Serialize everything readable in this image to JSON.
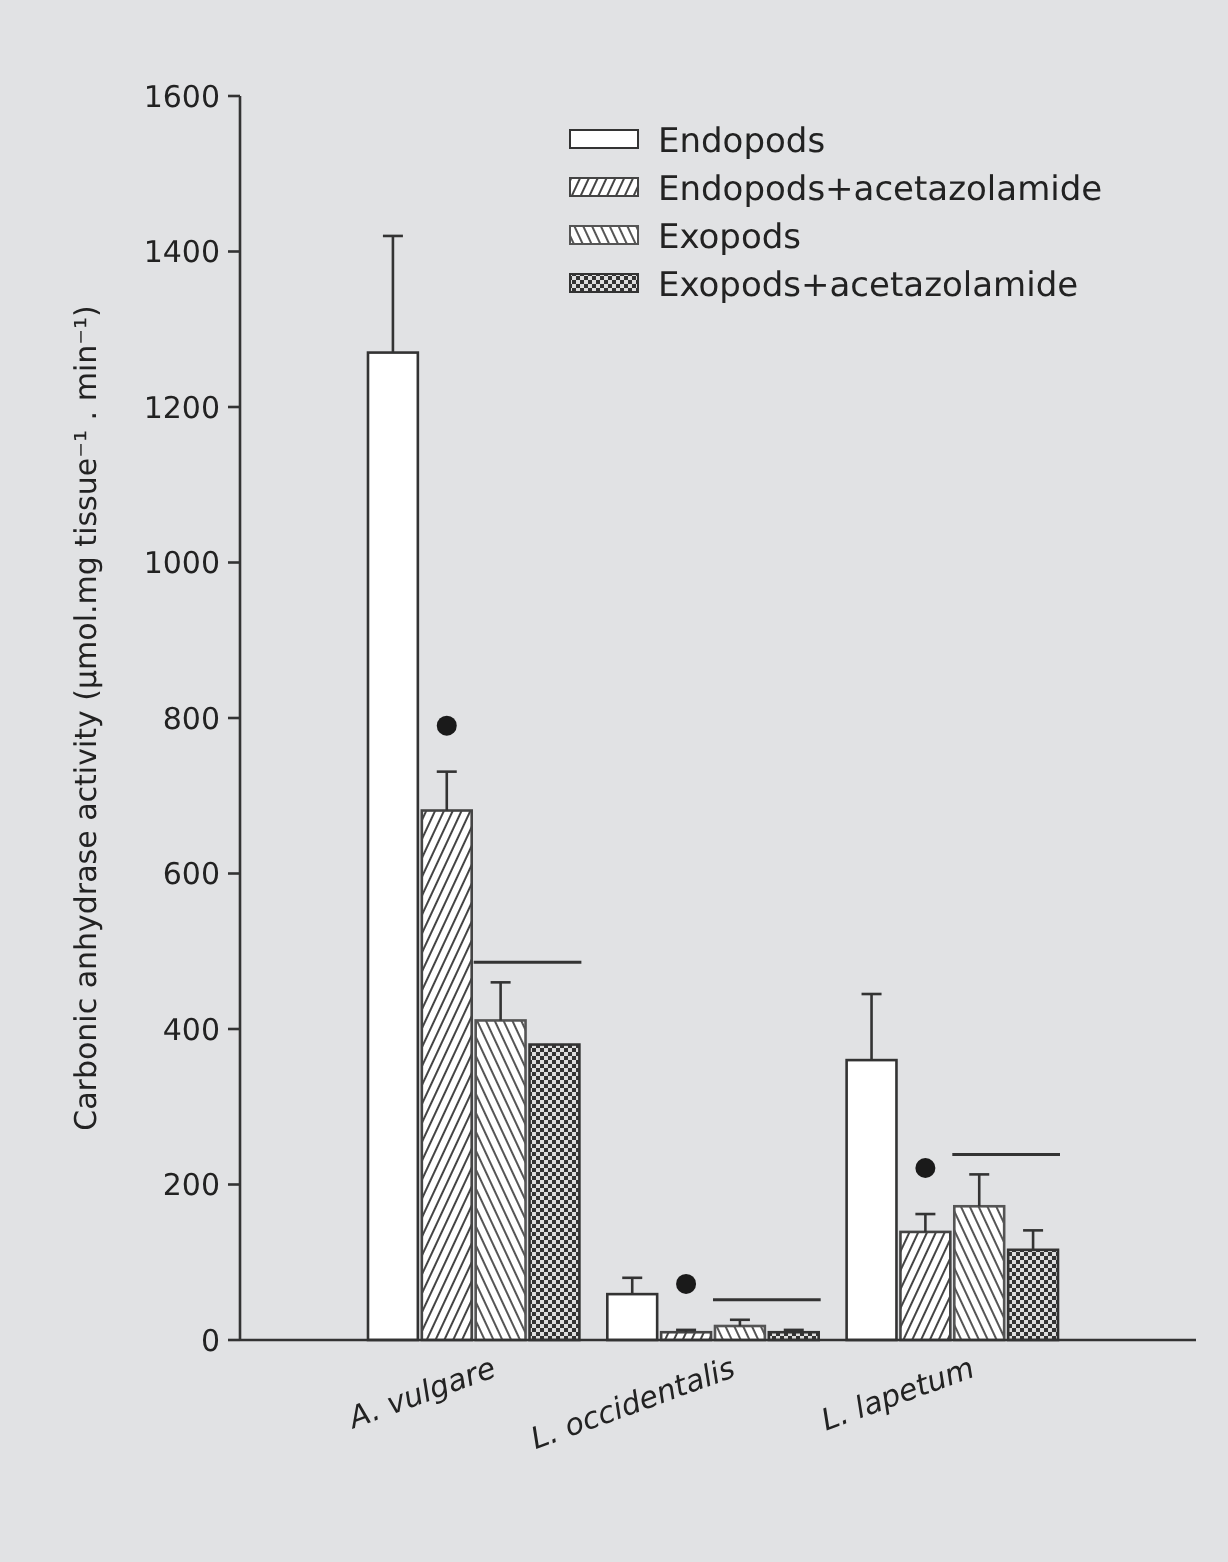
{
  "chart_data": {
    "type": "bar",
    "ylabel": "Carbonic anhydrase activity (µmol.mg tissue⁻¹ . min⁻¹)",
    "categories": [
      "A. vulgare",
      "L. occidentalis",
      "L. lapetum"
    ],
    "series": [
      {
        "name": "Endopods",
        "color": "#333333",
        "values": [
          1270,
          59,
          360
        ],
        "errors": [
          150,
          21,
          85
        ]
      },
      {
        "name": "Endopods+acetazolamide",
        "color": "#444444",
        "values": [
          681,
          10,
          139
        ],
        "errors": [
          50,
          3,
          23
        ]
      },
      {
        "name": "Exopods",
        "color": "#555555",
        "values": [
          411,
          18,
          172
        ],
        "errors": [
          49,
          8,
          41
        ]
      },
      {
        "name": "Exopods+acetazolamide",
        "color": "#333333",
        "values": [
          380,
          10,
          116
        ],
        "errors": [
          null,
          3,
          25
        ]
      }
    ],
    "ylim": [
      0,
      1600
    ],
    "yticks": [
      0,
      200,
      400,
      600,
      800,
      1000,
      1200,
      1400,
      1600
    ],
    "legend": "top right"
  }
}
